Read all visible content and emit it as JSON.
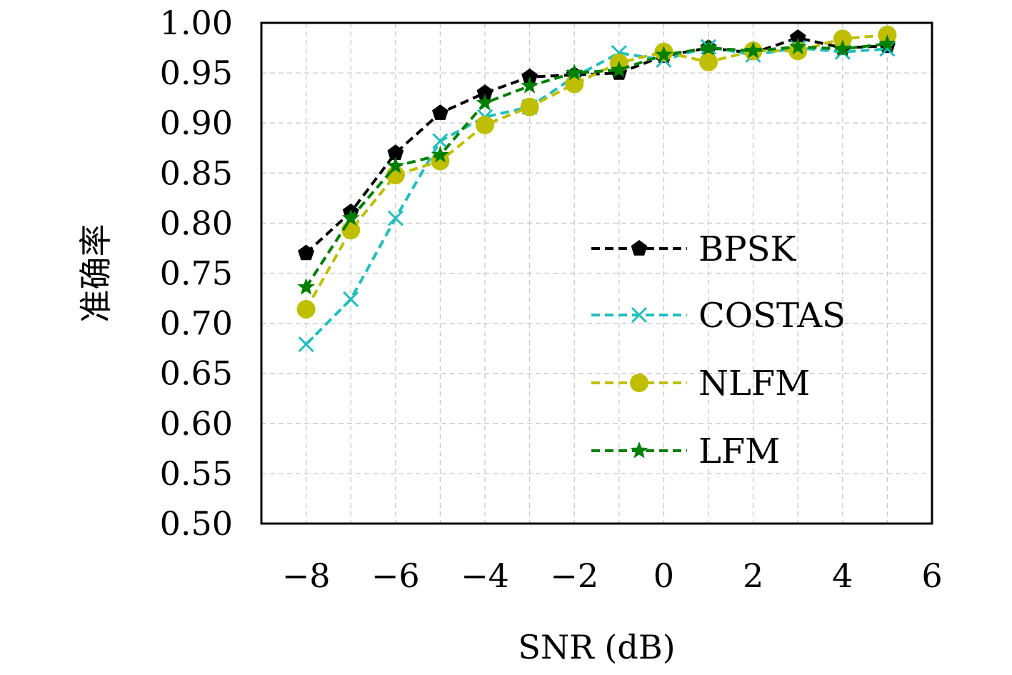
{
  "chart_data": {
    "type": "line",
    "xlabel": "SNR (dB)",
    "ylabel": "准确率",
    "xlim": [
      -9,
      6
    ],
    "ylim": [
      0.5,
      1.0
    ],
    "xticks": [
      "−8",
      "−6",
      "−4",
      "−2",
      "0",
      "2",
      "4",
      "6"
    ],
    "xtick_values": [
      -8,
      -6,
      -4,
      -2,
      0,
      2,
      4,
      6
    ],
    "yticks": [
      "0.50",
      "0.55",
      "0.60",
      "0.65",
      "0.70",
      "0.75",
      "0.80",
      "0.85",
      "0.90",
      "0.95",
      "1.00"
    ],
    "ytick_values": [
      0.5,
      0.55,
      0.6,
      0.65,
      0.7,
      0.75,
      0.8,
      0.85,
      0.9,
      0.95,
      1.0
    ],
    "grid": true,
    "legend_position": "right",
    "x": [
      -8,
      -7,
      -6,
      -5,
      -4,
      -3,
      -2,
      -1,
      0,
      1,
      2,
      3,
      4,
      5
    ],
    "series": [
      {
        "name": "BPSK",
        "color": "#000000",
        "marker": "pentagon",
        "values": [
          0.77,
          0.811,
          0.87,
          0.91,
          0.93,
          0.946,
          0.948,
          0.95,
          0.967,
          0.975,
          0.97,
          0.985,
          0.975,
          0.977
        ]
      },
      {
        "name": "COSTAS",
        "color": "#1fbfbf",
        "marker": "x",
        "values": [
          0.679,
          0.724,
          0.805,
          0.882,
          0.906,
          0.916,
          0.946,
          0.97,
          0.963,
          0.976,
          0.968,
          0.975,
          0.971,
          0.974
        ]
      },
      {
        "name": "NLFM",
        "color": "#bfbf00",
        "marker": "circle",
        "values": [
          0.714,
          0.793,
          0.848,
          0.862,
          0.898,
          0.916,
          0.939,
          0.96,
          0.971,
          0.961,
          0.972,
          0.972,
          0.984,
          0.988
        ]
      },
      {
        "name": "LFM",
        "color": "#008000",
        "marker": "star",
        "values": [
          0.736,
          0.805,
          0.857,
          0.868,
          0.92,
          0.937,
          0.95,
          0.953,
          0.968,
          0.975,
          0.972,
          0.976,
          0.974,
          0.979
        ]
      }
    ]
  }
}
